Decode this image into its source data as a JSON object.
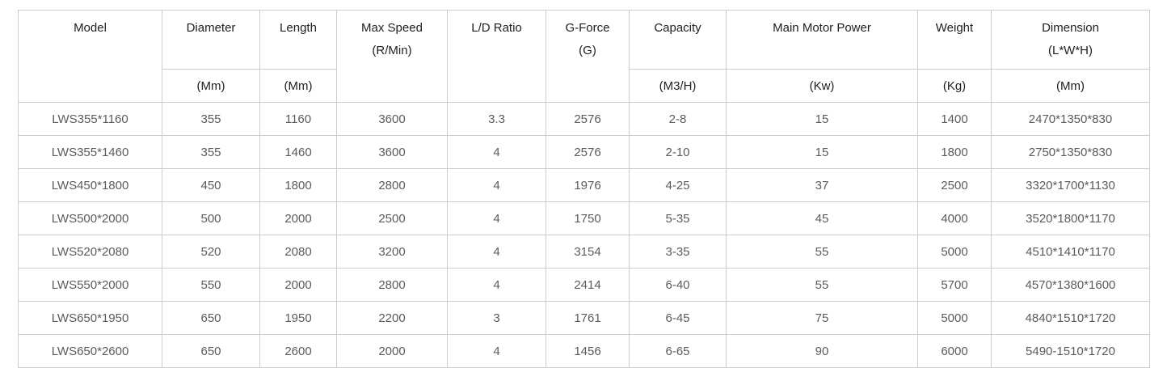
{
  "colors": {
    "background": "#ffffff",
    "border": "#cccccc",
    "header_text": "#212121",
    "body_text": "#5b5b5b"
  },
  "header": {
    "model": "Model",
    "diameter": "Diameter",
    "length": "Length",
    "max_speed_l1": "Max Speed",
    "max_speed_l2": "(R/Min)",
    "ld_ratio": "L/D Ratio",
    "g_force_l1": "G-Force",
    "g_force_l2": "(G)",
    "capacity": "Capacity",
    "main_motor_power": "Main Motor Power",
    "weight": "Weight",
    "dimension_l1": "Dimension",
    "dimension_l2": "(L*W*H)"
  },
  "units": {
    "diameter": "(Mm)",
    "length": "(Mm)",
    "capacity": "(M3/H)",
    "main_motor_power": "(Kw)",
    "weight": "(Kg)",
    "dimension": "(Mm)"
  },
  "chart_data": {
    "type": "table",
    "columns": [
      "Model",
      "Diameter (Mm)",
      "Length (Mm)",
      "Max Speed (R/Min)",
      "L/D Ratio",
      "G-Force (G)",
      "Capacity (M3/H)",
      "Main Motor Power (Kw)",
      "Weight (Kg)",
      "Dimension (L*W*H) (Mm)"
    ],
    "rows": [
      [
        "LWS355*1160",
        "355",
        "1160",
        "3600",
        "3.3",
        "2576",
        "2-8",
        "15",
        "1400",
        "2470*1350*830"
      ],
      [
        "LWS355*1460",
        "355",
        "1460",
        "3600",
        "4",
        "2576",
        "2-10",
        "15",
        "1800",
        "2750*1350*830"
      ],
      [
        "LWS450*1800",
        "450",
        "1800",
        "2800",
        "4",
        "1976",
        "4-25",
        "37",
        "2500",
        "3320*1700*1130"
      ],
      [
        "LWS500*2000",
        "500",
        "2000",
        "2500",
        "4",
        "1750",
        "5-35",
        "45",
        "4000",
        "3520*1800*1170"
      ],
      [
        "LWS520*2080",
        "520",
        "2080",
        "3200",
        "4",
        "3154",
        "3-35",
        "55",
        "5000",
        "4510*1410*1170"
      ],
      [
        "LWS550*2000",
        "550",
        "2000",
        "2800",
        "4",
        "2414",
        "6-40",
        "55",
        "5700",
        "4570*1380*1600"
      ],
      [
        "LWS650*1950",
        "650",
        "1950",
        "2200",
        "3",
        "1761",
        "6-45",
        "75",
        "5000",
        "4840*1510*1720"
      ],
      [
        "LWS650*2600",
        "650",
        "2600",
        "2000",
        "4",
        "1456",
        "6-65",
        "90",
        "6000",
        "5490-1510*1720"
      ]
    ]
  }
}
